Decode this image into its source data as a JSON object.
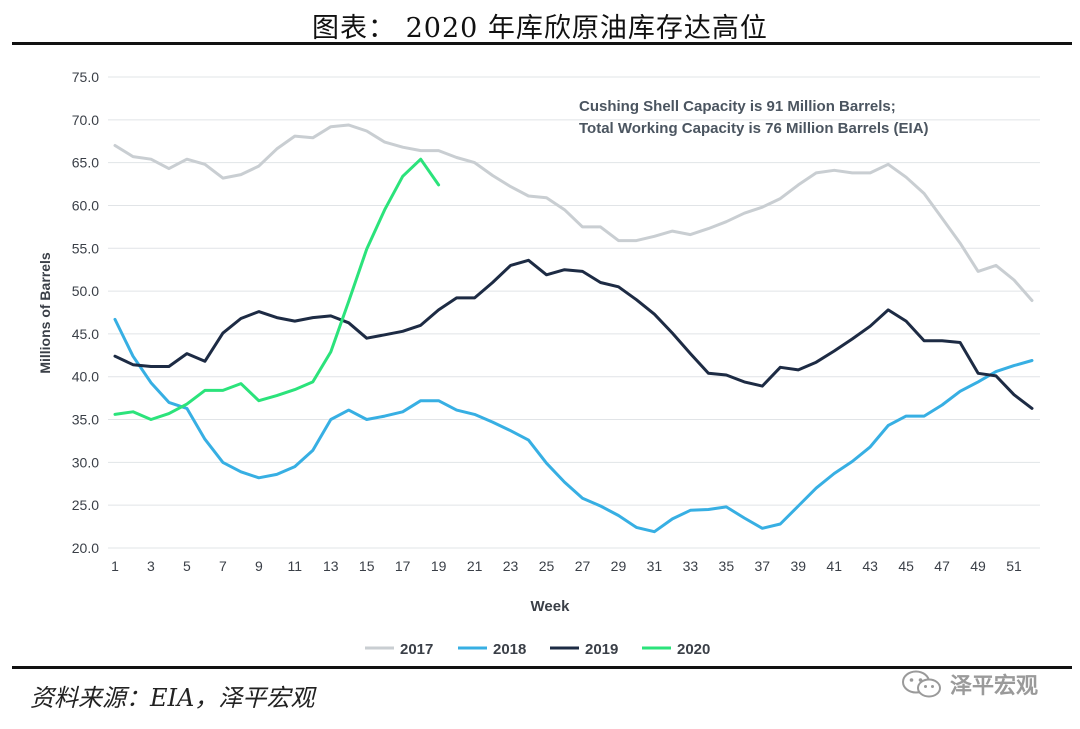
{
  "title": "图表： 2020 年库欣原油库存达高位",
  "source": "资料来源：EIA，泽平宏观",
  "watermark": "泽平宏观",
  "chart_data": {
    "type": "line",
    "annotation": [
      "Cushing Shell Capacity is 91 Million Barrels;",
      "Total Working Capacity is 76 Million Barrels (EIA)"
    ],
    "xlabel": "Week",
    "ylabel": "Millions of Barrels",
    "ylim": [
      20,
      75
    ],
    "xlim": [
      1,
      52
    ],
    "y_ticks": [
      "20.0",
      "25.0",
      "30.0",
      "35.0",
      "40.0",
      "45.0",
      "50.0",
      "55.0",
      "60.0",
      "65.0",
      "70.0",
      "75.0"
    ],
    "x_ticks": [
      "1",
      "3",
      "5",
      "7",
      "9",
      "11",
      "13",
      "15",
      "17",
      "19",
      "21",
      "23",
      "25",
      "27",
      "29",
      "31",
      "33",
      "35",
      "37",
      "39",
      "41",
      "43",
      "45",
      "47",
      "49",
      "51"
    ],
    "grid": true,
    "legend_position": "bottom",
    "series": [
      {
        "name": "2017",
        "color": "#c9ced2",
        "values": [
          67.0,
          65.7,
          65.4,
          64.3,
          65.4,
          64.8,
          63.2,
          63.6,
          64.6,
          66.6,
          68.1,
          67.9,
          69.2,
          69.4,
          68.7,
          67.4,
          66.8,
          66.4,
          66.4,
          65.6,
          65.0,
          63.5,
          62.2,
          61.1,
          60.9,
          59.5,
          57.5,
          57.5,
          55.9,
          55.9,
          56.4,
          57.0,
          56.6,
          57.3,
          58.1,
          59.1,
          59.8,
          60.8,
          62.4,
          63.8,
          64.1,
          63.8,
          63.8,
          64.8,
          63.3,
          61.4,
          58.5,
          55.6,
          52.3,
          53.0,
          51.3,
          48.9
        ]
      },
      {
        "name": "2018",
        "color": "#37afe3",
        "values": [
          46.7,
          42.4,
          39.3,
          37.0,
          36.3,
          32.7,
          30.0,
          28.9,
          28.2,
          28.6,
          29.5,
          31.4,
          35.0,
          36.1,
          35.0,
          35.4,
          35.9,
          37.2,
          37.2,
          36.1,
          35.6,
          34.7,
          33.7,
          32.6,
          29.9,
          27.7,
          25.8,
          24.9,
          23.8,
          22.4,
          21.9,
          23.4,
          24.4,
          24.5,
          24.8,
          23.5,
          22.3,
          22.8,
          24.9,
          27.0,
          28.7,
          30.1,
          31.8,
          34.3,
          35.4,
          35.4,
          36.7,
          38.3,
          39.4,
          40.6,
          41.3,
          41.9
        ]
      },
      {
        "name": "2019",
        "color": "#1d2b44",
        "values": [
          42.4,
          41.4,
          41.2,
          41.2,
          42.7,
          41.8,
          45.1,
          46.8,
          47.6,
          46.9,
          46.5,
          46.9,
          47.1,
          46.3,
          44.5,
          44.9,
          45.3,
          46.0,
          47.8,
          49.2,
          49.2,
          51.0,
          53.0,
          53.6,
          51.9,
          52.5,
          52.3,
          51.0,
          50.5,
          49.0,
          47.3,
          45.1,
          42.7,
          40.4,
          40.2,
          39.4,
          38.9,
          41.1,
          40.8,
          41.7,
          43.0,
          44.4,
          45.9,
          47.8,
          46.5,
          44.2,
          44.2,
          44.0,
          40.4,
          40.1,
          37.9,
          36.3
        ]
      },
      {
        "name": "2020",
        "color": "#2be37b",
        "values": [
          35.6,
          35.9,
          35.0,
          35.7,
          36.8,
          38.4,
          38.4,
          39.2,
          37.2,
          37.8,
          38.5,
          39.4,
          42.9,
          48.8,
          54.9,
          59.5,
          63.4,
          65.4,
          62.4
        ]
      }
    ]
  }
}
